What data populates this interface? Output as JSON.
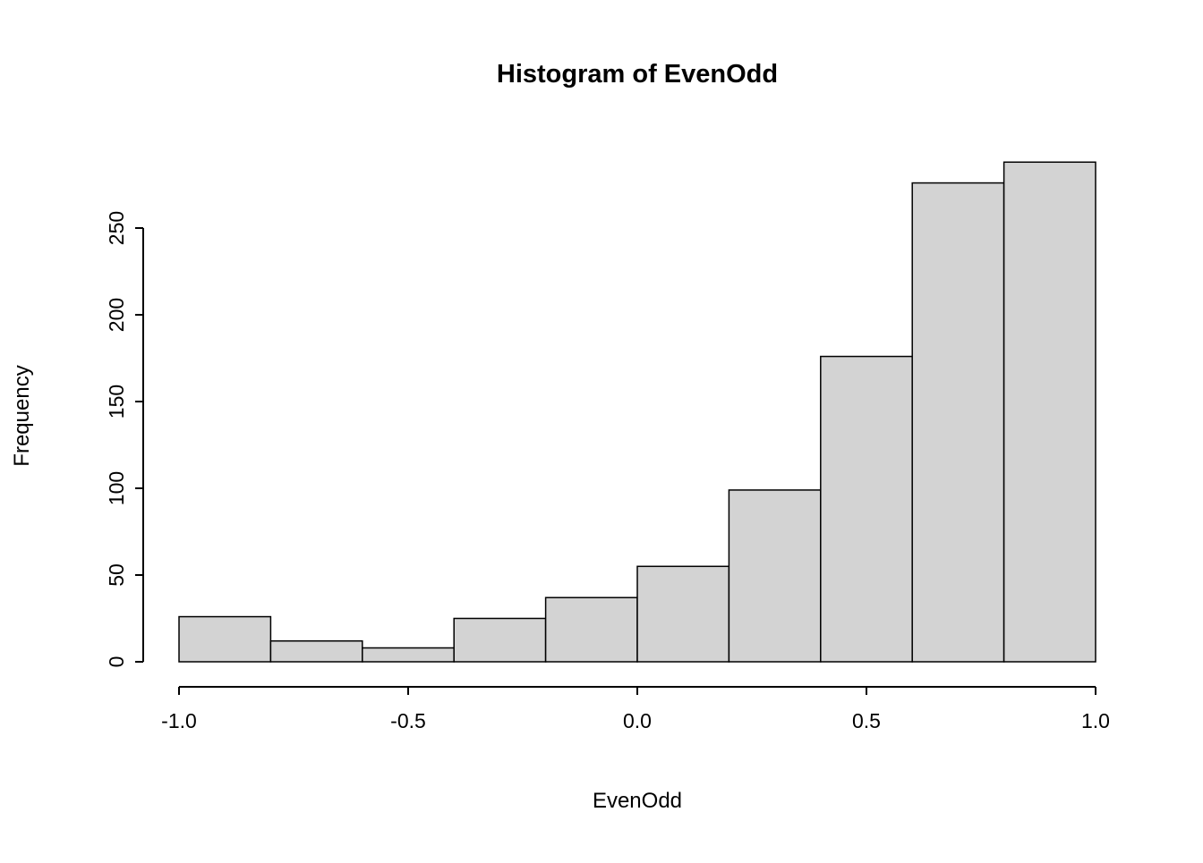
{
  "chart_data": {
    "type": "bar",
    "subtype": "histogram",
    "title": "Histogram of EvenOdd",
    "xlabel": "EvenOdd",
    "ylabel": "Frequency",
    "bin_edges": [
      -1.0,
      -0.8,
      -0.6,
      -0.4,
      -0.2,
      0.0,
      0.2,
      0.4,
      0.6,
      0.8,
      1.0
    ],
    "values": [
      26,
      12,
      8,
      25,
      37,
      55,
      99,
      176,
      276,
      288
    ],
    "x_ticks": [
      {
        "value": -1.0,
        "label": "-1.0"
      },
      {
        "value": -0.5,
        "label": "-0.5"
      },
      {
        "value": 0.0,
        "label": "0.0"
      },
      {
        "value": 0.5,
        "label": "0.5"
      },
      {
        "value": 1.0,
        "label": "1.0"
      }
    ],
    "y_ticks": [
      {
        "value": 0,
        "label": "0"
      },
      {
        "value": 50,
        "label": "50"
      },
      {
        "value": 100,
        "label": "100"
      },
      {
        "value": 150,
        "label": "150"
      },
      {
        "value": 200,
        "label": "200"
      },
      {
        "value": 250,
        "label": "250"
      }
    ],
    "xlim": [
      -1.0,
      1.0
    ],
    "ylim": [
      0,
      250
    ],
    "grid": false,
    "legend": "none",
    "bar_fill": "#d3d3d3",
    "bar_stroke": "#000000",
    "background": "#ffffff"
  }
}
